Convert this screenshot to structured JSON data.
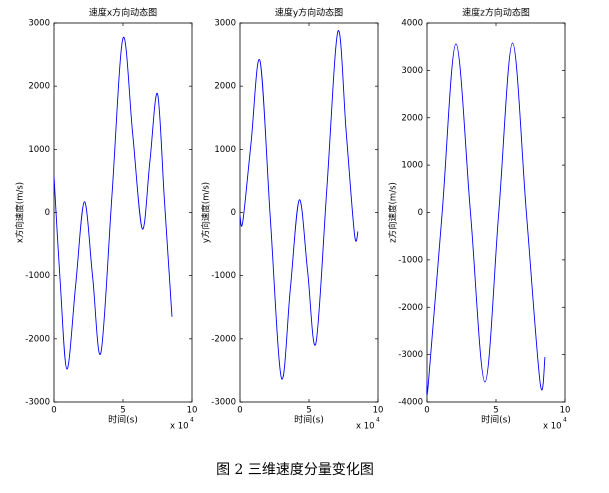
{
  "caption": "图 2  三维速度分量变化图",
  "chart_data": [
    {
      "type": "line",
      "title": "速度x方向动态图",
      "x_label": "时间(s)",
      "y_label": "x方向速度(m/s)",
      "x_scale_label": "x 10",
      "x_scale_exp": "4",
      "xlim": [
        0,
        10
      ],
      "xticks": [
        0,
        5,
        10
      ],
      "ylim": [
        -3000,
        3000
      ],
      "yticks": [
        -3000,
        -2000,
        -1000,
        0,
        1000,
        2000,
        3000
      ],
      "grid": false,
      "series": [
        {
          "color": "#0000ff",
          "x": [
            0,
            0.45,
            0.94,
            1.57,
            2.2,
            2.8,
            3.4,
            4.2,
            5.0,
            5.7,
            6.4,
            6.95,
            7.5,
            8.0,
            8.55
          ],
          "values": [
            570,
            -1100,
            -2480,
            -1150,
            170,
            -1020,
            -2220,
            270,
            2760,
            1250,
            -260,
            810,
            1880,
            200,
            -1650
          ]
        }
      ]
    },
    {
      "type": "line",
      "title": "速度y方向动态图",
      "x_label": "时间(s)",
      "y_label": "y方向速度(m/s)",
      "x_scale_label": "x 10",
      "x_scale_exp": "4",
      "xlim": [
        0,
        10
      ],
      "xticks": [
        0,
        5,
        10
      ],
      "ylim": [
        -3000,
        3000
      ],
      "yticks": [
        -3000,
        -2000,
        -1000,
        0,
        1000,
        2000,
        3000
      ],
      "grid": false,
      "series": [
        {
          "color": "#0000ff",
          "x": [
            0,
            0.2,
            0.8,
            1.45,
            2.2,
            3.0,
            3.65,
            4.3,
            4.9,
            5.5,
            6.3,
            7.1,
            7.7,
            8.3,
            8.55
          ],
          "values": [
            -50,
            -150,
            1100,
            2400,
            -100,
            -2620,
            -1200,
            200,
            -930,
            -2070,
            400,
            2870,
            1260,
            -350,
            -300
          ]
        }
      ]
    },
    {
      "type": "line",
      "title": "速度z方向动态图",
      "x_label": "时间(s)",
      "y_label": "z方向速度(m/s)",
      "x_scale_label": "x 10",
      "x_scale_exp": "4",
      "xlim": [
        0,
        10
      ],
      "xticks": [
        0,
        5,
        10
      ],
      "ylim": [
        -4000,
        4000
      ],
      "yticks": [
        -4000,
        -3000,
        -2000,
        -1000,
        0,
        1000,
        2000,
        3000,
        4000
      ],
      "grid": false,
      "series": [
        {
          "color": "#0000ff",
          "x": [
            0,
            0.1,
            1.1,
            2.1,
            3.15,
            4.2,
            5.2,
            6.2,
            7.2,
            8.2,
            8.55
          ],
          "values": [
            -3550,
            -3600,
            0,
            3560,
            0,
            -3580,
            0,
            3580,
            0,
            -3600,
            -3050
          ]
        }
      ]
    }
  ]
}
